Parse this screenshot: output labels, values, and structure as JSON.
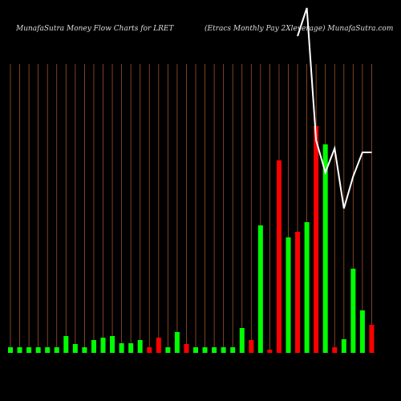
{
  "chart_data": {
    "type": "bar",
    "title": "MunafaSutra  Money Flow  Charts for LRET",
    "subtitle": "(Etracs Monthly Pay 2Xleverage) MunafaSutra.com",
    "categories": [
      null,
      null,
      null,
      null,
      null,
      null,
      null,
      null,
      null,
      null,
      null,
      null,
      null,
      null,
      null,
      null,
      null,
      null,
      null,
      null,
      null,
      null,
      null,
      null,
      null,
      null,
      null,
      null,
      null,
      null,
      null,
      null,
      null,
      null,
      null,
      null,
      null,
      null,
      null,
      null
    ],
    "values": [
      7,
      7,
      7,
      7,
      7,
      7,
      21,
      11,
      7,
      16,
      19,
      21,
      12,
      12,
      16,
      7,
      19,
      7,
      26,
      11,
      7,
      7,
      7,
      7,
      7,
      31,
      16,
      159,
      4,
      240,
      144,
      151,
      163,
      283,
      260,
      7,
      17,
      105,
      53,
      35
    ],
    "colors": [
      "#00ff00",
      "#00ff00",
      "#00ff00",
      "#00ff00",
      "#00ff00",
      "#00ff00",
      "#00ff00",
      "#00ff00",
      "#00ff00",
      "#00ff00",
      "#00ff00",
      "#00ff00",
      "#00ff00",
      "#00ff00",
      "#00ff00",
      "#ff0000",
      "#ff0000",
      "#00ff00",
      "#00ff00",
      "#ff0000",
      "#00ff00",
      "#00ff00",
      "#00ff00",
      "#00ff00",
      "#00ff00",
      "#00ff00",
      "#ff0000",
      "#00ff00",
      "#ff0000",
      "#ff0000",
      "#00ff00",
      "#ff0000",
      "#00ff00",
      "#ff0000",
      "#00ff00",
      "#ff0000",
      "#00ff00",
      "#00ff00",
      "#00ff00",
      "#ff0000"
    ],
    "ylim": [
      0,
      360
    ],
    "line": {
      "color": "#ffffff",
      "axis": "y2",
      "values": [
        null,
        null,
        null,
        null,
        null,
        null,
        null,
        null,
        null,
        null,
        null,
        null,
        null,
        null,
        null,
        null,
        null,
        null,
        null,
        null,
        null,
        null,
        null,
        null,
        null,
        null,
        null,
        null,
        null,
        null,
        null,
        455,
        490,
        325,
        285,
        315,
        240,
        280,
        310,
        310
      ]
    },
    "y2lim": [
      0,
      500
    ],
    "grid": true,
    "grid_color": "#a0522d"
  }
}
